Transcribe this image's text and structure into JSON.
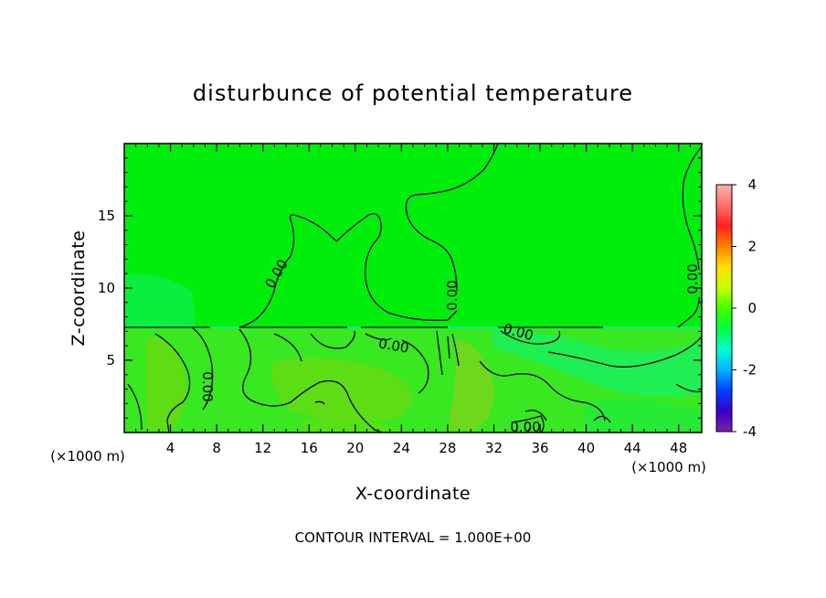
{
  "chart_data": {
    "type": "heatmap",
    "title": "disturbunce of potential temperature",
    "xlabel": "X-coordinate",
    "ylabel": "Z-coordinate",
    "x_unit": "(×1000 m)",
    "y_unit": "(×1000 m)",
    "xlim": [
      0,
      50
    ],
    "ylim": [
      0,
      20
    ],
    "x_ticks": [
      4,
      8,
      12,
      16,
      20,
      24,
      28,
      32,
      36,
      40,
      44,
      48
    ],
    "y_ticks": [
      5,
      10,
      15
    ],
    "colorbar": {
      "range": [
        -4,
        4
      ],
      "ticks": [
        4,
        2,
        0,
        -2,
        -4
      ],
      "colors": [
        "#7a1fb0",
        "#3a00c8",
        "#0040ff",
        "#00b4ff",
        "#00ffd0",
        "#00ff40",
        "#40ff00",
        "#c8ff00",
        "#ffe000",
        "#ff8000",
        "#ff2020",
        "#ff7070",
        "#ffb0b0"
      ]
    },
    "field_levels": {
      "upper_region": 0.0,
      "lower_region_range": [
        -0.5,
        0.5
      ]
    },
    "contour_level_label": "0.00",
    "contour_interval_text": "CONTOUR INTERVAL = 1.000E+00"
  }
}
